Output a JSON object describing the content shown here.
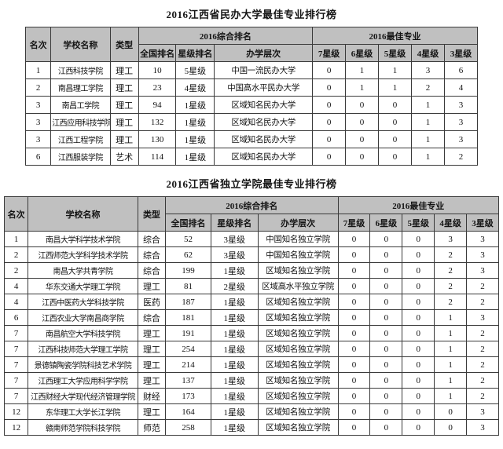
{
  "colors": {
    "header_bg": "#c0c0c0",
    "border": "#3a3a3a",
    "text": "#111111",
    "page_bg": "#ffffff"
  },
  "column_headers": {
    "rank": "名次",
    "school": "学校名称",
    "type": "类型",
    "group_comprehensive": "2016综合排名",
    "group_best_major": "2016最佳专业",
    "national_rank": "全国排名",
    "star_rank": "星级排名",
    "level": "办学层次",
    "star_7": "7星级",
    "star_6": "6星级",
    "star_5": "5星级",
    "star_4": "4星级",
    "star_3": "3星级"
  },
  "tables": [
    {
      "title": "2016江西省民办大学最佳专业排行榜",
      "rows": [
        [
          "1",
          "江西科技学院",
          "理工",
          "10",
          "5星级",
          "中国一流民办大学",
          "0",
          "1",
          "1",
          "3",
          "6"
        ],
        [
          "2",
          "南昌理工学院",
          "理工",
          "23",
          "4星级",
          "中国高水平民办大学",
          "0",
          "1",
          "1",
          "2",
          "4"
        ],
        [
          "3",
          "南昌工学院",
          "理工",
          "94",
          "1星级",
          "区域知名民办大学",
          "0",
          "0",
          "0",
          "1",
          "3"
        ],
        [
          "3",
          "江西应用科技学院",
          "理工",
          "132",
          "1星级",
          "区域知名民办大学",
          "0",
          "0",
          "0",
          "1",
          "3"
        ],
        [
          "3",
          "江西工程学院",
          "理工",
          "130",
          "1星级",
          "区域知名民办大学",
          "0",
          "0",
          "0",
          "1",
          "3"
        ],
        [
          "6",
          "江西服装学院",
          "艺术",
          "114",
          "1星级",
          "区域知名民办大学",
          "0",
          "0",
          "0",
          "1",
          "2"
        ]
      ]
    },
    {
      "title": "2016江西省独立学院最佳专业排行榜",
      "rows": [
        [
          "1",
          "南昌大学科学技术学院",
          "综合",
          "52",
          "3星级",
          "中国知名独立学院",
          "0",
          "0",
          "0",
          "3",
          "3"
        ],
        [
          "2",
          "江西师范大学科学技术学院",
          "综合",
          "62",
          "3星级",
          "中国知名独立学院",
          "0",
          "0",
          "0",
          "2",
          "3"
        ],
        [
          "2",
          "南昌大学共青学院",
          "综合",
          "199",
          "1星级",
          "区域知名独立学院",
          "0",
          "0",
          "0",
          "2",
          "3"
        ],
        [
          "4",
          "华东交通大学理工学院",
          "理工",
          "81",
          "2星级",
          "区域高水平独立学院",
          "0",
          "0",
          "0",
          "2",
          "2"
        ],
        [
          "4",
          "江西中医药大学科技学院",
          "医药",
          "187",
          "1星级",
          "区域知名独立学院",
          "0",
          "0",
          "0",
          "2",
          "2"
        ],
        [
          "6",
          "江西农业大学南昌商学院",
          "综合",
          "181",
          "1星级",
          "区域知名独立学院",
          "0",
          "0",
          "0",
          "1",
          "3"
        ],
        [
          "7",
          "南昌航空大学科技学院",
          "理工",
          "191",
          "1星级",
          "区域知名独立学院",
          "0",
          "0",
          "0",
          "1",
          "2"
        ],
        [
          "7",
          "江西科技师范大学理工学院",
          "理工",
          "254",
          "1星级",
          "区域知名独立学院",
          "0",
          "0",
          "0",
          "1",
          "2"
        ],
        [
          "7",
          "景德镇陶瓷学院科技艺术学院",
          "理工",
          "214",
          "1星级",
          "区域知名独立学院",
          "0",
          "0",
          "0",
          "1",
          "2"
        ],
        [
          "7",
          "江西理工大学应用科学学院",
          "理工",
          "137",
          "1星级",
          "区域知名独立学院",
          "0",
          "0",
          "0",
          "1",
          "2"
        ],
        [
          "7",
          "江西财经大学现代经济管理学院",
          "财经",
          "173",
          "1星级",
          "区域知名独立学院",
          "0",
          "0",
          "0",
          "1",
          "2"
        ],
        [
          "12",
          "东华理工大学长江学院",
          "理工",
          "164",
          "1星级",
          "区域知名独立学院",
          "0",
          "0",
          "0",
          "0",
          "3"
        ],
        [
          "12",
          "赣南师范学院科技学院",
          "师范",
          "258",
          "1星级",
          "区域知名独立学院",
          "0",
          "0",
          "0",
          "0",
          "3"
        ]
      ]
    }
  ]
}
